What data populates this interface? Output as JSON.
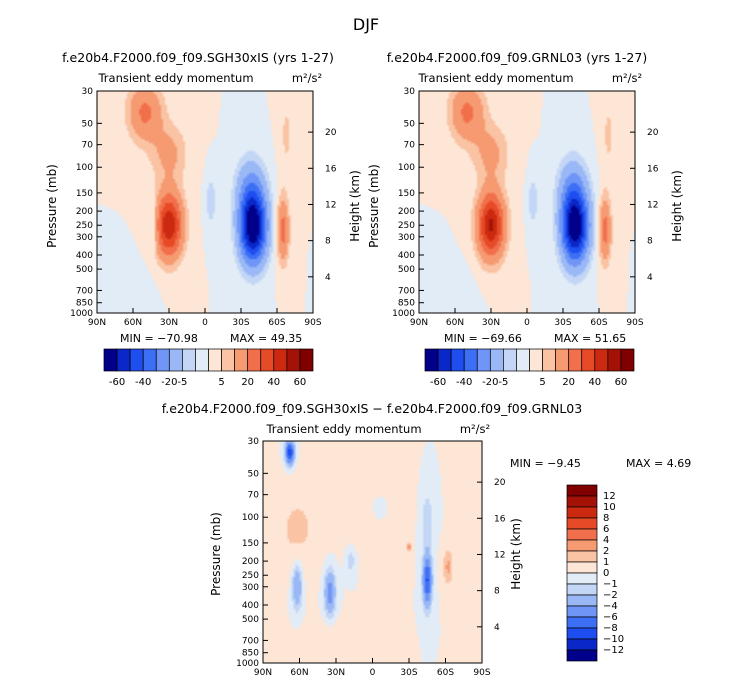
{
  "page_title": "DJF",
  "chart_data": [
    {
      "type": "heatmap",
      "title": "f.e20b4.F2000.f09_f09.SGH30xIS (yrs 1-27)",
      "subtitle": "Transient eddy momentum",
      "units": "m²/s²",
      "xlabel": "",
      "ylabel": "Pressure (mb)",
      "ylabel_right": "Height (km)",
      "x_ticks": [
        "90N",
        "60N",
        "30N",
        "0",
        "30S",
        "60S",
        "90S"
      ],
      "y_ticks": [
        "30",
        "50",
        "70",
        "100",
        "150",
        "200",
        "250",
        "300",
        "400",
        "500",
        "700",
        "850",
        "1000"
      ],
      "height_ticks": [
        "20",
        "16",
        "12",
        "8",
        "4"
      ],
      "min_text": "MIN = −70.98",
      "max_text": "MAX =  49.35",
      "min": -70.98,
      "max": 49.35,
      "colorbar_labels": [
        "-60",
        "-40",
        "-20",
        "-5",
        "5",
        "20",
        "40",
        "60"
      ],
      "colorbar_colors": [
        "#00008b",
        "#0a28c8",
        "#1e4ef0",
        "#3d6ff5",
        "#6f95f7",
        "#9ab8f6",
        "#c3d6f5",
        "#e2ecf7",
        "#fde6d6",
        "#fac3a4",
        "#f69a72",
        "#f1704b",
        "#e64a27",
        "#cb2a10",
        "#a41207",
        "#800000"
      ],
      "features": [
        {
          "lat": 50,
          "p": 42,
          "amp": 22,
          "w": 14,
          "h": 0.45
        },
        {
          "lat": 30,
          "p": 250,
          "amp": 49.35,
          "w": 11,
          "h": 0.5
        },
        {
          "lat": 30,
          "p": 80,
          "amp": 12,
          "w": 15,
          "h": 0.45
        },
        {
          "lat": 43,
          "p": 250,
          "amp": -10,
          "w": 4,
          "h": 0.35
        },
        {
          "lat": -5,
          "p": 170,
          "amp": -9,
          "w": 4,
          "h": 0.4
        },
        {
          "lat": -40,
          "p": 260,
          "amp": -70.98,
          "w": 11,
          "h": 0.55
        },
        {
          "lat": -38,
          "p": 140,
          "amp": -18,
          "w": 12,
          "h": 0.5
        },
        {
          "lat": -65,
          "p": 270,
          "amp": 24,
          "w": 5,
          "h": 0.5
        },
        {
          "lat": -68,
          "p": 60,
          "amp": 6,
          "w": 6,
          "h": 0.7
        },
        {
          "lat": 62,
          "p": 750,
          "amp": -4,
          "w": 15,
          "h": 0.4
        }
      ]
    },
    {
      "type": "heatmap",
      "title": "f.e20b4.F2000.f09_f09.GRNL03 (yrs 1-27)",
      "subtitle": "Transient eddy momentum",
      "units": "m²/s²",
      "xlabel": "",
      "ylabel": "Pressure (mb)",
      "ylabel_right": "Height (km)",
      "x_ticks": [
        "90N",
        "60N",
        "30N",
        "0",
        "30S",
        "60S",
        "90S"
      ],
      "y_ticks": [
        "30",
        "50",
        "70",
        "100",
        "150",
        "200",
        "250",
        "300",
        "400",
        "500",
        "700",
        "850",
        "1000"
      ],
      "height_ticks": [
        "20",
        "16",
        "12",
        "8",
        "4"
      ],
      "min_text": "MIN = −69.66",
      "max_text": "MAX =  51.65",
      "min": -69.66,
      "max": 51.65,
      "colorbar_labels": [
        "-60",
        "-40",
        "-20",
        "-5",
        "5",
        "20",
        "40",
        "60"
      ],
      "colorbar_colors": [
        "#00008b",
        "#0a28c8",
        "#1e4ef0",
        "#3d6ff5",
        "#6f95f7",
        "#9ab8f6",
        "#c3d6f5",
        "#e2ecf7",
        "#fde6d6",
        "#fac3a4",
        "#f69a72",
        "#f1704b",
        "#e64a27",
        "#cb2a10",
        "#a41207",
        "#800000"
      ],
      "features": [
        {
          "lat": 50,
          "p": 42,
          "amp": 22,
          "w": 14,
          "h": 0.45
        },
        {
          "lat": 30,
          "p": 250,
          "amp": 51.65,
          "w": 11,
          "h": 0.5
        },
        {
          "lat": 30,
          "p": 80,
          "amp": 12,
          "w": 15,
          "h": 0.45
        },
        {
          "lat": -5,
          "p": 170,
          "amp": -9,
          "w": 4,
          "h": 0.4
        },
        {
          "lat": -40,
          "p": 260,
          "amp": -69.66,
          "w": 11,
          "h": 0.55
        },
        {
          "lat": -38,
          "p": 140,
          "amp": -18,
          "w": 12,
          "h": 0.5
        },
        {
          "lat": -65,
          "p": 270,
          "amp": 24,
          "w": 5,
          "h": 0.5
        },
        {
          "lat": -68,
          "p": 60,
          "amp": 6,
          "w": 6,
          "h": 0.7
        },
        {
          "lat": 62,
          "p": 750,
          "amp": -4,
          "w": 15,
          "h": 0.4
        }
      ]
    },
    {
      "type": "heatmap",
      "title": "f.e20b4.F2000.f09_f09.SGH30xIS − f.e20b4.F2000.f09_f09.GRNL03",
      "subtitle": "Transient eddy momentum",
      "units": "m²/s²",
      "xlabel": "",
      "ylabel": "Pressure (mb)",
      "ylabel_right": "Height (km)",
      "x_ticks": [
        "90N",
        "60N",
        "30N",
        "0",
        "30S",
        "60S",
        "90S"
      ],
      "y_ticks": [
        "30",
        "50",
        "70",
        "100",
        "150",
        "200",
        "250",
        "300",
        "400",
        "500",
        "700",
        "850",
        "1000"
      ],
      "height_ticks": [
        "20",
        "16",
        "12",
        "8",
        "4"
      ],
      "min_text": "MIN =  −9.45",
      "max_text": "MAX =   4.69",
      "min": -9.45,
      "max": 4.69,
      "colorbar_labels": [
        "12",
        "10",
        "8",
        "6",
        "4",
        "2",
        "1",
        "0",
        "−1",
        "−2",
        "−4",
        "−6",
        "−8",
        "−10",
        "−12"
      ],
      "colorbar_colors": [
        "#800000",
        "#a41207",
        "#cb2a10",
        "#e64a27",
        "#f1704b",
        "#f69a72",
        "#fac3a4",
        "#fde6d6",
        "#e2ecf7",
        "#c3d6f5",
        "#9ab8f6",
        "#6f95f7",
        "#3d6ff5",
        "#1e4ef0",
        "#0a28c8",
        "#00008b"
      ],
      "features": [
        {
          "lat": 68,
          "p": 36,
          "amp": -9.45,
          "w": 3.5,
          "h": 0.18
        },
        {
          "lat": 62,
          "p": 120,
          "amp": 1.2,
          "w": 20,
          "h": 0.7
        },
        {
          "lat": 5,
          "p": 80,
          "amp": 1.0,
          "w": 25,
          "h": 0.6
        },
        {
          "lat": 62,
          "p": 300,
          "amp": -4,
          "w": 4,
          "h": 0.35
        },
        {
          "lat": 35,
          "p": 330,
          "amp": -5,
          "w": 4.5,
          "h": 0.35
        },
        {
          "lat": 18,
          "p": 200,
          "amp": -1.6,
          "w": 4,
          "h": 0.2
        },
        {
          "lat": -5,
          "p": 85,
          "amp": -1.3,
          "w": 8,
          "h": 0.25
        },
        {
          "lat": -45,
          "p": 270,
          "amp": -8.5,
          "w": 3.5,
          "h": 0.4
        },
        {
          "lat": -45,
          "p": 100,
          "amp": -1.6,
          "w": 5,
          "h": 0.45
        },
        {
          "lat": -62,
          "p": 220,
          "amp": 2.2,
          "w": 4,
          "h": 0.3
        },
        {
          "lat": -30,
          "p": 160,
          "amp": 4.69,
          "w": 1.5,
          "h": 0.06
        },
        {
          "lat": 30,
          "p": 700,
          "amp": 0.8,
          "w": 25,
          "h": 0.3
        }
      ]
    }
  ]
}
